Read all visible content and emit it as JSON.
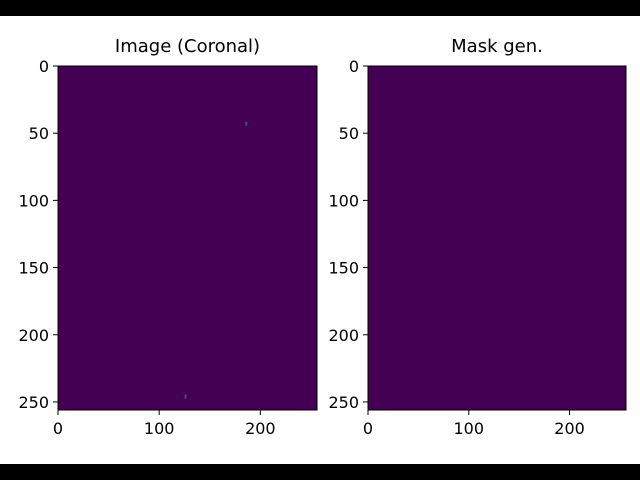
{
  "colors": {
    "background": "#ffffff",
    "letterbox": "#000000",
    "image_fill": "#440154",
    "speck": "#3b528b"
  },
  "chart_data": [
    {
      "type": "heatmap",
      "title": "Image (Coronal)",
      "xlabel": "",
      "ylabel": "",
      "xlim": [
        0,
        256
      ],
      "ylim": [
        256,
        0
      ],
      "x_ticks": [
        0,
        100,
        200
      ],
      "y_ticks": [
        0,
        50,
        100,
        150,
        200,
        250
      ],
      "colormap": "viridis",
      "grid": false,
      "fill_value": 0,
      "specks": [
        {
          "x": 186,
          "y": 43,
          "value": 0.2
        },
        {
          "x": 126,
          "y": 246,
          "value": 0.2
        }
      ]
    },
    {
      "type": "heatmap",
      "title": "Mask gen.",
      "xlabel": "",
      "ylabel": "",
      "xlim": [
        0,
        256
      ],
      "ylim": [
        256,
        0
      ],
      "x_ticks": [
        0,
        100,
        200
      ],
      "y_ticks": [
        0,
        50,
        100,
        150,
        200,
        250
      ],
      "colormap": "viridis",
      "grid": false,
      "fill_value": 0,
      "specks": []
    }
  ]
}
